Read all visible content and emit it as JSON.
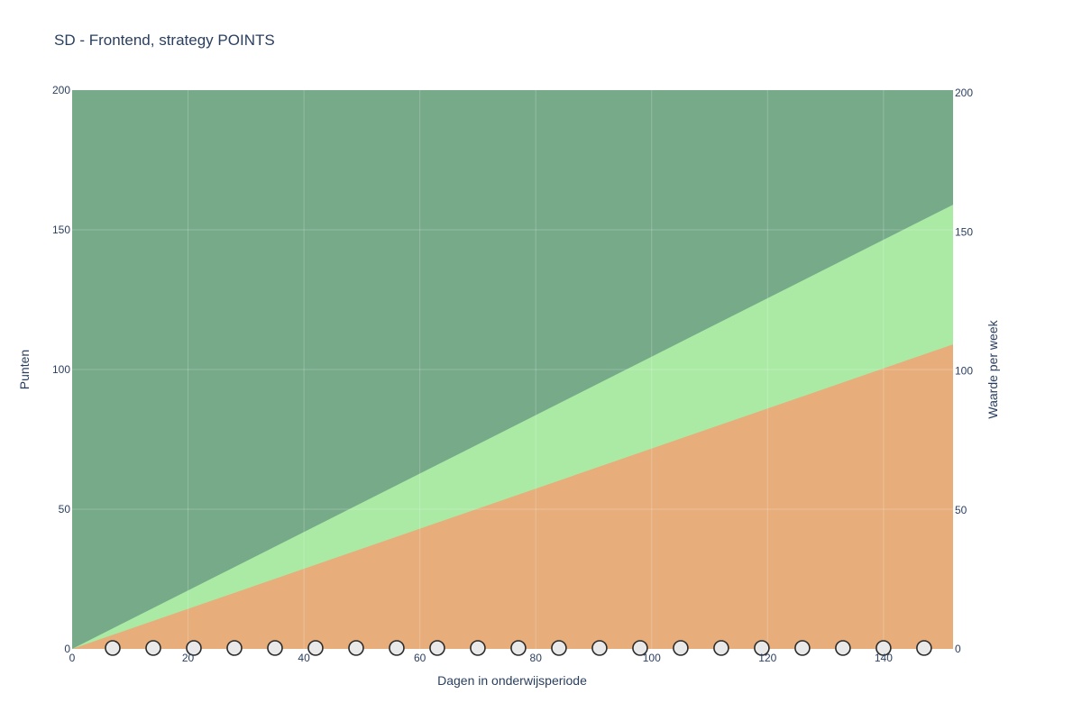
{
  "chart_data": {
    "type": "area",
    "title": "SD - Frontend, strategy POINTS",
    "xlabel": "Dagen in onderwijsperiode",
    "ylabel": "Punten",
    "y2label": "Waarde per week",
    "xlim": [
      0,
      152
    ],
    "ylim": [
      0,
      200
    ],
    "y2lim": [
      0,
      200
    ],
    "x_ticks": [
      0,
      20,
      40,
      60,
      80,
      100,
      120,
      140
    ],
    "y_ticks": [
      0,
      50,
      100,
      150,
      200
    ],
    "y2_ticks": [
      0,
      50,
      100,
      150,
      200
    ],
    "grid": true,
    "colors": {
      "top_band": "#76aa88",
      "middle_band": "#aaeaa5",
      "bottom_band": "#e7ae7b",
      "marker_fill": "#e9e9e9",
      "marker_stroke": "#2b2b2b",
      "text": "#2a3f5f"
    },
    "series": [
      {
        "x": [
          0,
          152
        ],
        "y": [
          200,
          200
        ]
      },
      {
        "x": [
          0,
          152
        ],
        "y": [
          0,
          159
        ]
      },
      {
        "x": [
          0,
          152
        ],
        "y": [
          0,
          109
        ]
      }
    ],
    "markers": {
      "x": [
        7,
        14,
        21,
        28,
        35,
        42,
        49,
        56,
        63,
        70,
        77,
        84,
        91,
        98,
        105,
        112,
        119,
        126,
        133,
        140,
        147
      ],
      "y": [
        0,
        0,
        0,
        0,
        0,
        0,
        0,
        0,
        0,
        0,
        0,
        0,
        0,
        0,
        0,
        0,
        0,
        0,
        0,
        0,
        0
      ]
    }
  }
}
